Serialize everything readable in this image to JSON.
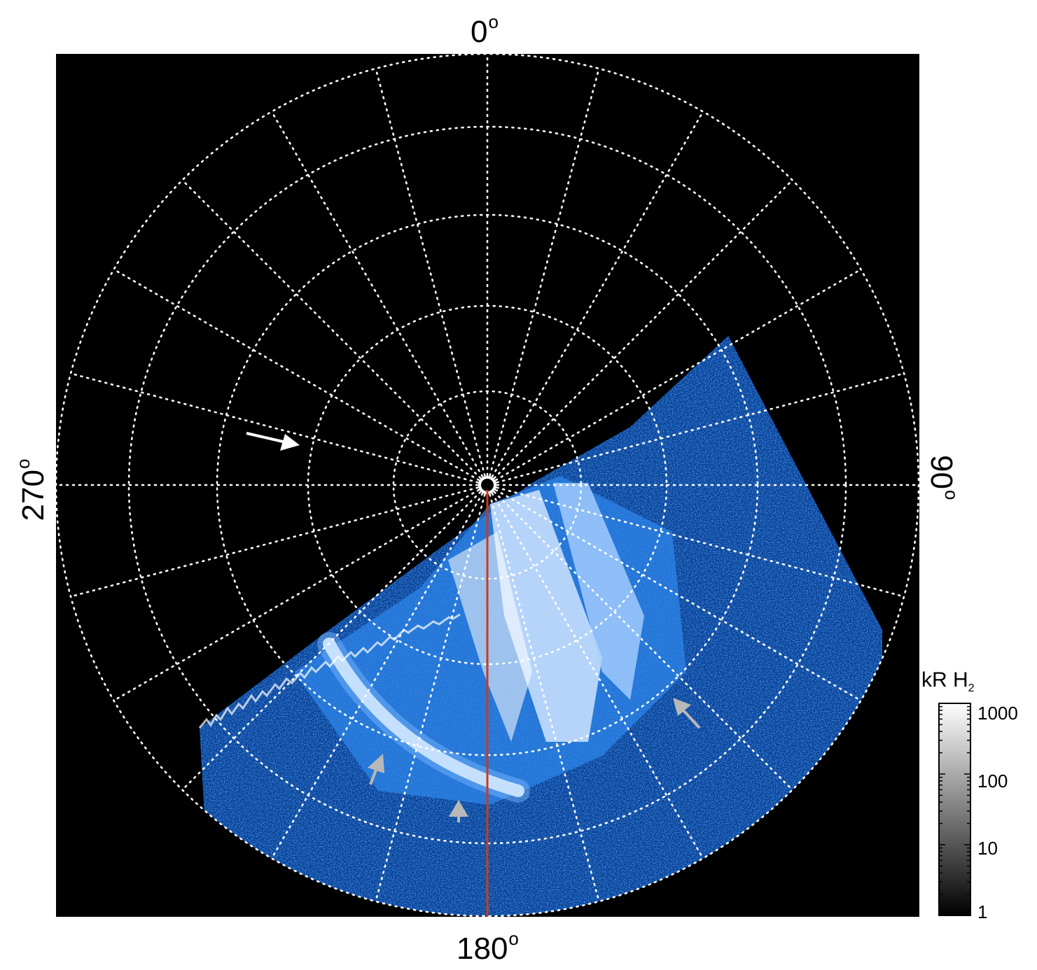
{
  "axis_labels": {
    "top": "0",
    "right": "90",
    "bottom": "180",
    "left": "270",
    "degree_symbol": "o"
  },
  "colorbar": {
    "title_main": "kR H",
    "title_sub": "2",
    "ticks": [
      "1000",
      "100",
      "10",
      "1"
    ],
    "scale": "log",
    "range": [
      1,
      1000
    ]
  },
  "colors": {
    "background": "#000000",
    "grid": "#ffffff",
    "aurora_dim": "#0a3f9a",
    "aurora_mid": "#2f8df0",
    "aurora_bright": "#ffffff",
    "meridian_line": "#cc3a1a",
    "arrow_white": "#ffffff",
    "arrow_gray": "#b8b8b8"
  },
  "annotations": [
    {
      "type": "arrow",
      "color": "white"
    },
    {
      "type": "arrow",
      "color": "gray"
    },
    {
      "type": "arrow",
      "color": "gray"
    },
    {
      "type": "arrow",
      "color": "gray"
    }
  ]
}
